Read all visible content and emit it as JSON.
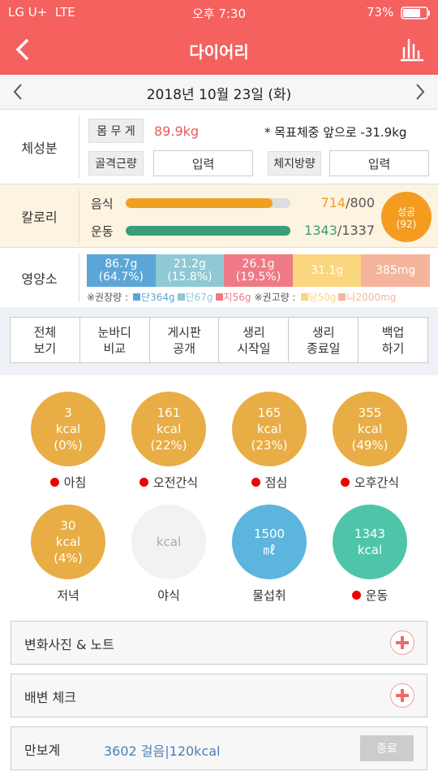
{
  "status_bar": {
    "carrier": "LG U+",
    "network": "LTE",
    "time": "오후 7:30",
    "battery": "73%"
  },
  "header": {
    "title": "다이어리"
  },
  "date_nav": {
    "date": "2018년 10월 23일 (화)"
  },
  "body_composition": {
    "label": "체성분",
    "weight_label": "몸 무 게",
    "weight": "89.9kg",
    "goal_note": "* 목표체중 앞으로 -31.9kg",
    "muscle_label": "골격근량",
    "muscle_input": "입력",
    "fat_label": "체지방량",
    "fat_input": "입력"
  },
  "calories": {
    "label": "칼로리",
    "separator": "/",
    "food": {
      "label": "음식",
      "value": 714,
      "target": 800,
      "color": "#f0a020"
    },
    "exercise": {
      "label": "운동",
      "value": 1343,
      "target": 1337,
      "color": "#3a9d78"
    },
    "badge": "성공",
    "badge_count": "(92)"
  },
  "nutrition": {
    "label": "영양소",
    "items": [
      {
        "amount": "86.7g",
        "percent": "(64.7%)",
        "color": "#5ba6d6"
      },
      {
        "amount": "21.2g",
        "percent": "(15.8%)",
        "color": "#8fc9d3"
      },
      {
        "amount": "26.1g",
        "percent": "(19.5%)",
        "color": "#ee7a85"
      },
      {
        "amount": "31.1g",
        "color": "#fad67e"
      },
      {
        "amount": "385mg",
        "color": "#f5b59c"
      }
    ],
    "recommended_label": "※권장량 :",
    "recommended": [
      {
        "text": "단364g",
        "color": "#5ba6d6"
      },
      {
        "text": "단67g",
        "color": "#8fc9d3"
      },
      {
        "text": "지56g",
        "color": "#ee7a85"
      }
    ],
    "limit_label": "※권고량 :",
    "limits": [
      {
        "text": "당50g",
        "color": "#fad67e"
      },
      {
        "text": "나2000mg",
        "color": "#f5b59c"
      }
    ]
  },
  "menu": [
    {
      "lines": [
        "전체",
        "보기"
      ]
    },
    {
      "lines": [
        "눈바디",
        "비교"
      ]
    },
    {
      "lines": [
        "게시판",
        "공개"
      ]
    },
    {
      "lines": [
        "생리",
        "시작일"
      ]
    },
    {
      "lines": [
        "생리",
        "종료일"
      ]
    },
    {
      "lines": [
        "백업",
        "하기"
      ]
    }
  ],
  "meals": [
    {
      "value": "3",
      "unit": "kcal",
      "percent": "(0%)",
      "name": "아침",
      "dot": true,
      "color": "#e9ad45"
    },
    {
      "value": "161",
      "unit": "kcal",
      "percent": "(22%)",
      "name": "오전간식",
      "dot": true,
      "color": "#e9ad45"
    },
    {
      "value": "165",
      "unit": "kcal",
      "percent": "(23%)",
      "name": "점심",
      "dot": true,
      "color": "#e9ad45"
    },
    {
      "value": "355",
      "unit": "kcal",
      "percent": "(49%)",
      "name": "오후간식",
      "dot": true,
      "color": "#e9ad45"
    },
    {
      "value": "30",
      "unit": "kcal",
      "percent": "(4%)",
      "name": "저녁",
      "dot": false,
      "color": "#e9ad45"
    },
    {
      "unit": "kcal",
      "name": "야식",
      "dot": false,
      "color": "#f2f2f2"
    },
    {
      "value": "1500",
      "unit": "㎖",
      "name": "물섭취",
      "dot": false,
      "color": "#5bb5dc"
    },
    {
      "value": "1343",
      "unit": "kcal",
      "name": "운동",
      "dot": true,
      "color": "#4ec5a9"
    }
  ],
  "sections": [
    {
      "title": "변화사진 & 노트"
    },
    {
      "title": "배변 체크"
    }
  ],
  "pedometer": {
    "label": "만보계",
    "value": "3602 걸음|120kcal",
    "button": "종료"
  }
}
